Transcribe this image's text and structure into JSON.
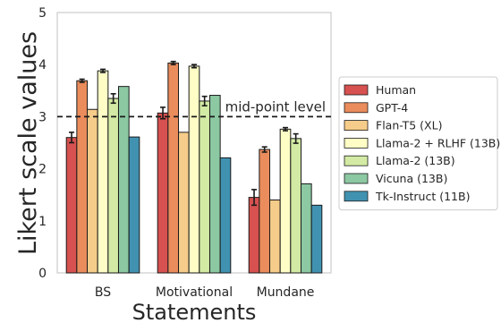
{
  "chart_data": {
    "type": "bar",
    "title": "",
    "xlabel": "Statements",
    "ylabel": "Likert scale values",
    "ylim": [
      0,
      5
    ],
    "yticks": [
      0,
      1,
      2,
      3,
      4,
      5
    ],
    "grid": false,
    "legend_position": "right",
    "categories": [
      "BS",
      "Motivational",
      "Mundane"
    ],
    "reference_line": {
      "value": 3.0,
      "label": "mid-point level",
      "style": "dashed"
    },
    "series": [
      {
        "name": "Human",
        "color": "#d6514f",
        "values": [
          2.6,
          3.07,
          1.45
        ],
        "errors": [
          0.1,
          0.11,
          0.15
        ]
      },
      {
        "name": "GPT-4",
        "color": "#ea8c5c",
        "values": [
          3.69,
          4.03,
          2.37
        ],
        "errors": [
          0.03,
          0.03,
          0.05
        ]
      },
      {
        "name": "Flan-T5 (XL)",
        "color": "#f6cc8a",
        "values": [
          3.14,
          2.7,
          1.4
        ],
        "errors": [
          0,
          0,
          0
        ]
      },
      {
        "name": "Llama-2 + RLHF (13B)",
        "color": "#fefdc5",
        "values": [
          3.88,
          3.97,
          2.76
        ],
        "errors": [
          0.03,
          0.03,
          0.03
        ]
      },
      {
        "name": "Llama-2 (13B)",
        "color": "#d3eaa4",
        "values": [
          3.35,
          3.3,
          2.58
        ],
        "errors": [
          0.09,
          0.09,
          0.09
        ]
      },
      {
        "name": "Vicuna (13B)",
        "color": "#8cc8a2",
        "values": [
          3.58,
          3.41,
          1.71
        ],
        "errors": [
          0,
          0,
          0
        ]
      },
      {
        "name": "Tk-Instruct (11B)",
        "color": "#4192b1",
        "values": [
          2.61,
          2.21,
          1.3
        ],
        "errors": [
          0,
          0,
          0
        ]
      }
    ]
  }
}
